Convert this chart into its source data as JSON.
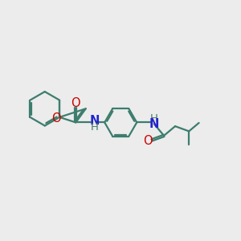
{
  "background_color": "#ececec",
  "bond_color": "#3d7d6e",
  "N_color": "#2424cc",
  "O_color": "#cc0000",
  "H_color": "#4a7a6a",
  "line_width": 1.6,
  "font_size": 10.5,
  "figsize": [
    3.0,
    3.0
  ],
  "dpi": 100,
  "xlim": [
    0,
    10
  ],
  "ylim": [
    0,
    10
  ]
}
